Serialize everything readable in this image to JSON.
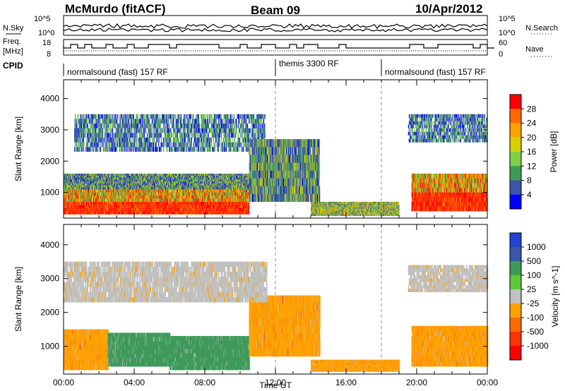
{
  "header": {
    "title": "McMurdo (fitACF)",
    "beam": "Beam 09",
    "date": "10/Apr/2012"
  },
  "top_panels": {
    "nsky_label": "N.Sky",
    "nsky_ticks": [
      "10^5",
      "10^0"
    ],
    "nsearch_label": "N.Search",
    "nsearch_ticks": [
      "10^5",
      "10^0"
    ],
    "freq_label_line1": "Freq.",
    "freq_label_line2": "[MHz]",
    "freq_ticks": [
      "18",
      "8"
    ],
    "nave_label": "Nave",
    "nave_ticks": [
      "60",
      "0"
    ],
    "cpid_label": "CPID",
    "cpid_segments": [
      {
        "label": "normalsound (fast) 157 RF",
        "start_hr": 0,
        "end_hr": 12
      },
      {
        "label": "themis 3300 RF",
        "start_hr": 12,
        "end_hr": 18
      },
      {
        "label": "normalsound (fast) 157 RF",
        "start_hr": 18,
        "end_hr": 24
      }
    ]
  },
  "power_colorbar": {
    "title": "Power [dB]",
    "ticks": [
      "28",
      "24",
      "20",
      "16",
      "12",
      "8",
      "4"
    ],
    "colors": [
      "#ff0000",
      "#ff6a00",
      "#ffa200",
      "#d8d000",
      "#7fd14a",
      "#3f9a5a",
      "#3b56a6",
      "#0000ff"
    ]
  },
  "velocity_colorbar": {
    "title": "Velocity [m s^-1]",
    "ticks": [
      "1000",
      "500",
      "100",
      "25",
      "-25",
      "-100",
      "-500",
      "-1000"
    ],
    "colors": [
      "#2244cc",
      "#3b56a6",
      "#3f9a5a",
      "#5fc83a",
      "#c0c0c0",
      "#ffa200",
      "#ff6a00",
      "#ff3300",
      "#ff0000"
    ]
  },
  "chart_data": [
    {
      "type": "heatmap",
      "title": "",
      "ylabel": "Slant Range [km]",
      "xlabel": "",
      "y_ticks": [
        "4000",
        "3000",
        "2000",
        "1000"
      ],
      "ylim": [
        180,
        4600
      ],
      "xlim": [
        0,
        24
      ],
      "markers_hr": [
        12,
        18
      ],
      "backscatter_regions": [
        {
          "t0": 0,
          "t1": 10.5,
          "r0": 300,
          "r1": 1100,
          "level": "high"
        },
        {
          "t0": 0,
          "t1": 10.5,
          "r0": 1100,
          "r1": 1600,
          "level": "mid"
        },
        {
          "t0": 0.6,
          "t1": 11.4,
          "r0": 2300,
          "r1": 3500,
          "level": "patchy"
        },
        {
          "t0": 10.5,
          "t1": 14.5,
          "r0": 700,
          "r1": 2700,
          "level": "mid"
        },
        {
          "t0": 14,
          "t1": 19,
          "r0": 250,
          "r1": 700,
          "level": "low"
        },
        {
          "t0": 19.7,
          "t1": 24,
          "r0": 400,
          "r1": 1600,
          "level": "high"
        },
        {
          "t0": 19.5,
          "t1": 24,
          "r0": 2600,
          "r1": 3500,
          "level": "patchy"
        }
      ]
    },
    {
      "type": "heatmap",
      "title": "",
      "ylabel": "Slant Range [km]",
      "xlabel": "Time UT",
      "x_ticks": [
        "00:00",
        "04:00",
        "08:00",
        "12:00",
        "16:00",
        "20:00",
        "00:00"
      ],
      "y_ticks": [
        "4000",
        "3000",
        "2000",
        "1000"
      ],
      "ylim": [
        180,
        4600
      ],
      "xlim": [
        0,
        24
      ],
      "markers_hr": [
        12,
        18
      ],
      "velocity_regions": [
        {
          "t0": 0,
          "t1": 2.5,
          "r0": 300,
          "r1": 1500,
          "velocity": -100
        },
        {
          "t0": 2.5,
          "t1": 6.0,
          "r0": 400,
          "r1": 1400,
          "velocity": 100
        },
        {
          "t0": 6.0,
          "t1": 10.5,
          "r0": 300,
          "r1": 1300,
          "velocity": 100
        },
        {
          "t0": 10.5,
          "t1": 14.5,
          "r0": 700,
          "r1": 2500,
          "velocity": -100
        },
        {
          "t0": 0,
          "t1": 11.5,
          "r0": 2300,
          "r1": 3500,
          "velocity": -25
        },
        {
          "t0": 14,
          "t1": 19,
          "r0": 250,
          "r1": 600,
          "velocity": -100
        },
        {
          "t0": 19.7,
          "t1": 24,
          "r0": 400,
          "r1": 1600,
          "velocity": -100
        },
        {
          "t0": 19.5,
          "t1": 24,
          "r0": 2600,
          "r1": 3400,
          "velocity": -25
        }
      ]
    }
  ]
}
